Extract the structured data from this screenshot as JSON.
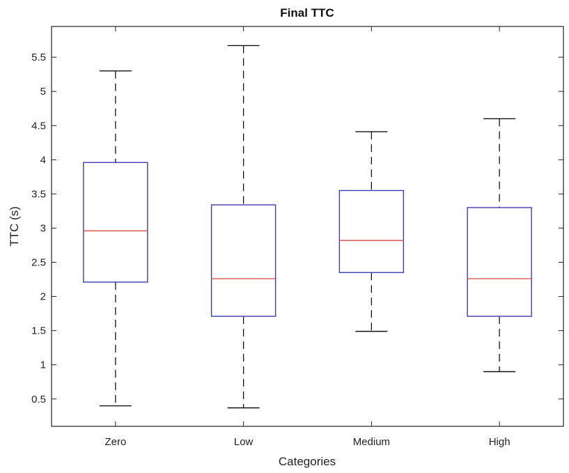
{
  "chart_data": {
    "type": "boxplot",
    "title": "Final TTC",
    "xlabel": "Categories",
    "ylabel": "TTC (s)",
    "ylim": [
      0.1,
      5.95
    ],
    "yticks": [
      0.5,
      1,
      1.5,
      2,
      2.5,
      3,
      3.5,
      4,
      4.5,
      5,
      5.5
    ],
    "ytick_labels": [
      "0.5",
      "1",
      "1.5",
      "2",
      "2.5",
      "3",
      "3.5",
      "4",
      "4.5",
      "5",
      "5.5"
    ],
    "grid": false,
    "legend": "none",
    "categories": [
      "Zero",
      "Low",
      "Medium",
      "High"
    ],
    "boxes": [
      {
        "category": "Zero",
        "min": 0.4,
        "q1": 2.21,
        "median": 2.96,
        "q3": 3.96,
        "max": 5.3
      },
      {
        "category": "Low",
        "min": 0.37,
        "q1": 1.71,
        "median": 2.26,
        "q3": 3.34,
        "max": 5.67
      },
      {
        "category": "Medium",
        "min": 1.49,
        "q1": 2.35,
        "median": 2.82,
        "q3": 3.55,
        "max": 4.41
      },
      {
        "category": "High",
        "min": 0.9,
        "q1": 1.71,
        "median": 2.26,
        "q3": 3.3,
        "max": 4.6
      }
    ],
    "colors": {
      "box": "#3b3bb5",
      "median": "#d9534f",
      "whisker": "#111111",
      "axis": "#222222"
    }
  }
}
